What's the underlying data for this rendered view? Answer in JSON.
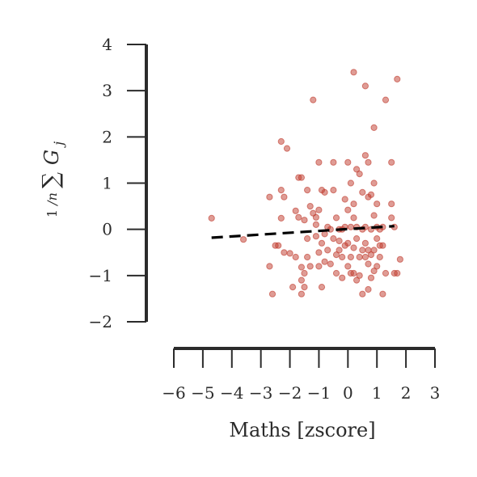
{
  "chart_data": {
    "type": "scatter",
    "title": "",
    "xlabel": "Maths [zscore]",
    "ylabel": "1/n ∑ G_j",
    "xlim": [
      -6,
      3
    ],
    "ylim": [
      -2,
      4
    ],
    "xticks": [
      -6,
      -5,
      -4,
      -3,
      -2,
      -1,
      0,
      1,
      2,
      3
    ],
    "yticks": [
      -2,
      -1,
      0,
      1,
      2,
      3,
      4
    ],
    "xtick_labels": [
      "−6",
      "−5",
      "−4",
      "−3",
      "−2",
      "−1",
      "0",
      "1",
      "2",
      "3"
    ],
    "ytick_labels": [
      "−2",
      "−1",
      "0",
      "1",
      "2",
      "3",
      "4"
    ],
    "grid": false,
    "point_color": "#c0392b",
    "trend_line": {
      "style": "dashed",
      "color": "#000000",
      "x": [
        -4.7,
        1.6
      ],
      "y": [
        -0.18,
        0.07
      ]
    },
    "points": [
      [
        -4.7,
        0.24
      ],
      [
        -3.6,
        -0.22
      ],
      [
        -2.7,
        0.7
      ],
      [
        -2.7,
        -0.8
      ],
      [
        -2.6,
        -1.4
      ],
      [
        -2.5,
        -0.35
      ],
      [
        -2.4,
        -0.35
      ],
      [
        -2.3,
        0.24
      ],
      [
        -2.3,
        0.85
      ],
      [
        -2.3,
        1.9
      ],
      [
        -2.2,
        -0.5
      ],
      [
        -2.2,
        0.7
      ],
      [
        -2.1,
        1.75
      ],
      [
        -2.0,
        -0.52
      ],
      [
        -1.9,
        -1.25
      ],
      [
        -1.8,
        -0.6
      ],
      [
        -1.8,
        0.4
      ],
      [
        -1.7,
        0.26
      ],
      [
        -1.7,
        1.12
      ],
      [
        -1.6,
        -0.82
      ],
      [
        -1.6,
        1.12
      ],
      [
        -1.6,
        -1.1
      ],
      [
        -1.6,
        -1.4
      ],
      [
        -1.5,
        -0.95
      ],
      [
        -1.5,
        -1.25
      ],
      [
        -1.5,
        0.2
      ],
      [
        -1.4,
        -0.6
      ],
      [
        -1.4,
        -0.2
      ],
      [
        -1.4,
        0.85
      ],
      [
        -1.3,
        -0.8
      ],
      [
        -1.3,
        0.5
      ],
      [
        -1.2,
        0.35
      ],
      [
        -1.2,
        2.8
      ],
      [
        -1.1,
        -0.15
      ],
      [
        -1.1,
        0.1
      ],
      [
        -1.1,
        0.26
      ],
      [
        -1.0,
        -0.5
      ],
      [
        -1.0,
        0.42
      ],
      [
        -1.0,
        1.45
      ],
      [
        -1.0,
        -0.8
      ],
      [
        -0.9,
        0.85
      ],
      [
        -0.9,
        -0.3
      ],
      [
        -0.9,
        -1.25
      ],
      [
        -0.8,
        -0.1
      ],
      [
        -0.8,
        0.8
      ],
      [
        -0.8,
        -0.7
      ],
      [
        -0.7,
        0.05
      ],
      [
        -0.7,
        -0.45
      ],
      [
        -0.6,
        -0.75
      ],
      [
        -0.6,
        0.0
      ],
      [
        -0.5,
        0.85
      ],
      [
        -0.5,
        -0.2
      ],
      [
        -0.5,
        1.45
      ],
      [
        -0.4,
        -0.95
      ],
      [
        -0.4,
        -0.55
      ],
      [
        -0.4,
        0.25
      ],
      [
        -0.3,
        -0.25
      ],
      [
        -0.3,
        -0.45
      ],
      [
        -0.3,
        0.0
      ],
      [
        -0.2,
        -1.05
      ],
      [
        -0.2,
        -0.6
      ],
      [
        -0.2,
        0.0
      ],
      [
        -0.1,
        -0.35
      ],
      [
        -0.1,
        0.05
      ],
      [
        -0.1,
        0.65
      ],
      [
        0.0,
        -0.8
      ],
      [
        0.0,
        -0.3
      ],
      [
        0.0,
        0.42
      ],
      [
        0.0,
        1.45
      ],
      [
        0.1,
        -0.95
      ],
      [
        0.1,
        -0.6
      ],
      [
        0.1,
        0.05
      ],
      [
        0.1,
        1.0
      ],
      [
        0.2,
        -0.95
      ],
      [
        0.2,
        -0.4
      ],
      [
        0.2,
        0.25
      ],
      [
        0.2,
        0.55
      ],
      [
        0.2,
        3.4
      ],
      [
        0.3,
        -1.1
      ],
      [
        0.3,
        -0.2
      ],
      [
        0.3,
        0.05
      ],
      [
        0.3,
        1.3
      ],
      [
        0.4,
        -1.0
      ],
      [
        0.4,
        -0.6
      ],
      [
        0.4,
        1.2
      ],
      [
        0.5,
        -1.4
      ],
      [
        0.5,
        -0.45
      ],
      [
        0.5,
        0.0
      ],
      [
        0.5,
        0.8
      ],
      [
        0.6,
        -0.6
      ],
      [
        0.6,
        -0.3
      ],
      [
        0.6,
        0.05
      ],
      [
        0.6,
        1.6
      ],
      [
        0.6,
        3.1
      ],
      [
        0.7,
        -1.3
      ],
      [
        0.7,
        -0.75
      ],
      [
        0.7,
        -0.45
      ],
      [
        0.7,
        0.7
      ],
      [
        0.7,
        1.45
      ],
      [
        0.8,
        -1.05
      ],
      [
        0.8,
        -0.55
      ],
      [
        0.8,
        0.0
      ],
      [
        0.8,
        0.75
      ],
      [
        0.9,
        -0.9
      ],
      [
        0.9,
        -0.45
      ],
      [
        0.9,
        0.3
      ],
      [
        0.9,
        1.0
      ],
      [
        0.9,
        2.2
      ],
      [
        1.0,
        -0.8
      ],
      [
        1.0,
        -0.2
      ],
      [
        1.0,
        0.05
      ],
      [
        1.0,
        0.55
      ],
      [
        1.1,
        -0.6
      ],
      [
        1.1,
        -0.35
      ],
      [
        1.1,
        0.0
      ],
      [
        1.2,
        -1.4
      ],
      [
        1.2,
        -0.35
      ],
      [
        1.2,
        0.05
      ],
      [
        1.3,
        -0.95
      ],
      [
        1.3,
        2.8
      ],
      [
        1.5,
        0.25
      ],
      [
        1.5,
        0.55
      ],
      [
        1.5,
        1.45
      ],
      [
        1.6,
        -0.95
      ],
      [
        1.6,
        0.05
      ],
      [
        1.7,
        -0.95
      ],
      [
        1.7,
        3.25
      ],
      [
        1.8,
        -0.65
      ]
    ]
  }
}
